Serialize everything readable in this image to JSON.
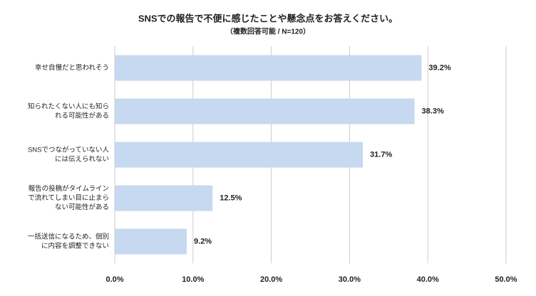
{
  "chart_data": {
    "type": "bar",
    "orientation": "horizontal",
    "title": "SNSでの報告で不便に感じたことや懸念点をお答えください。",
    "subtitle": "（複数回答可能 / N=120）",
    "categories": [
      [
        "幸せ自慢だと思われそう"
      ],
      [
        "知られたくない人にも知ら",
        "れる可能性がある"
      ],
      [
        "SNSでつながっていない人",
        "には伝えられない"
      ],
      [
        "報告の投稿がタイムライン",
        "で流れてしまい目に止まら",
        "ない可能性がある"
      ],
      [
        "一括送信になるため、個別",
        "に内容を調整できない"
      ]
    ],
    "values": [
      39.2,
      38.3,
      31.7,
      12.5,
      9.2
    ],
    "value_labels": [
      "39.2%",
      "38.3%",
      "31.7%",
      "12.5%",
      "9.2%"
    ],
    "color": "#c6d9f1",
    "xlim": [
      0,
      50
    ],
    "xticks": [
      {
        "value": 0,
        "label": "0.0%"
      },
      {
        "value": 10,
        "label": "10.0%"
      },
      {
        "value": 20,
        "label": "20.0%"
      },
      {
        "value": 30,
        "label": "30.0%"
      },
      {
        "value": 40,
        "label": "40.0%"
      },
      {
        "value": 50,
        "label": "50.0%"
      }
    ],
    "grid": true
  }
}
